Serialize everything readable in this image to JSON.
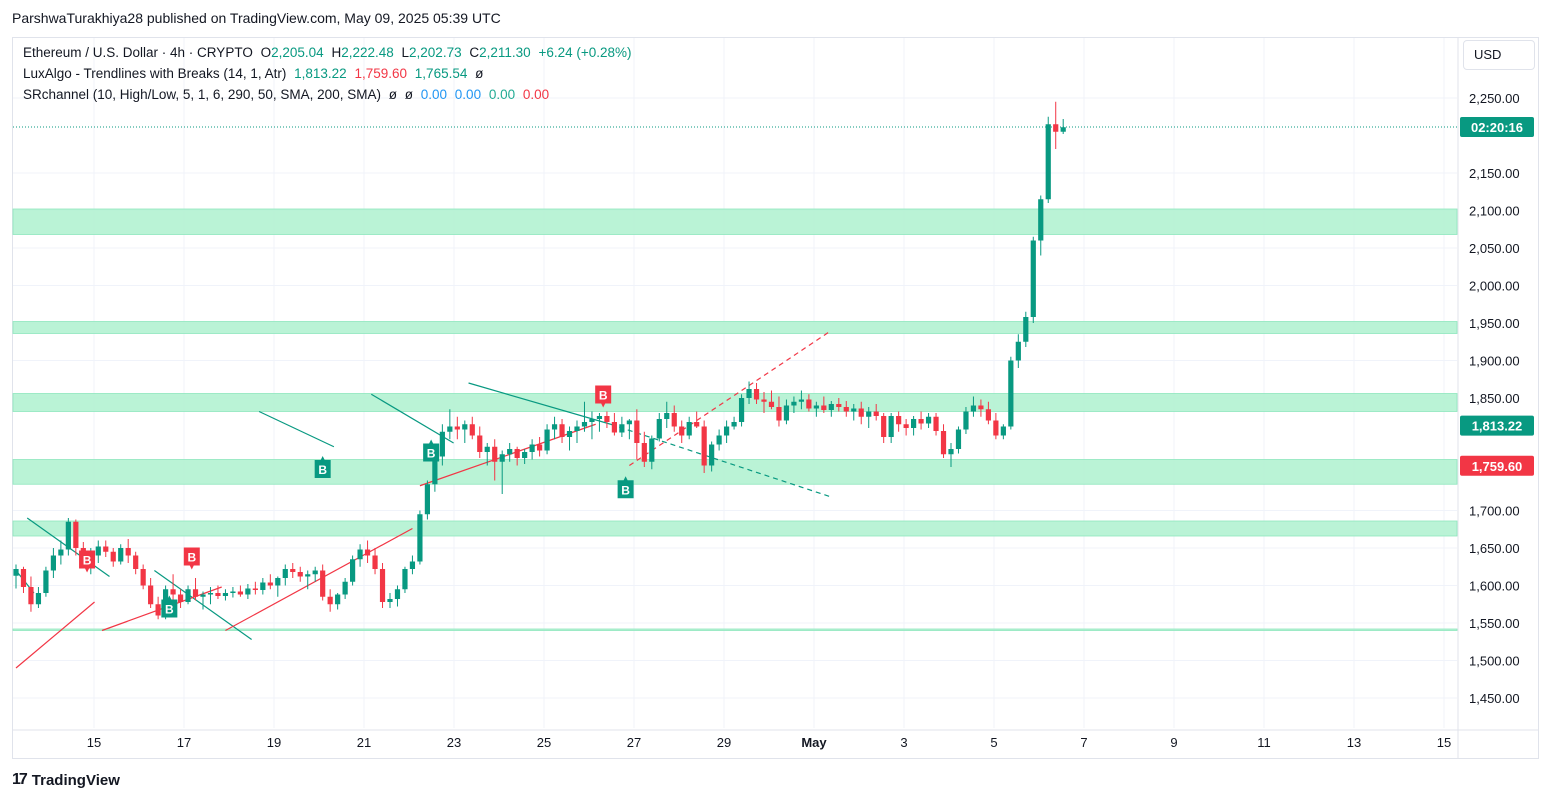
{
  "header": {
    "publisher": "ParshwaTurakhiya28 published on TradingView.com, May 09, 2025 05:39 UTC"
  },
  "legend": {
    "symbol": "Ethereum / U.S. Dollar · 4h · CRYPTO",
    "o_label": "O",
    "o": "2,205.04",
    "h_label": "H",
    "h": "2,222.48",
    "l_label": "L",
    "l": "2,202.73",
    "c_label": "C",
    "c": "2,211.30",
    "change": "+6.24 (+0.28%)",
    "indicator1": "LuxAlgo - Trendlines with Breaks (14, 1, Atr)",
    "ind1_v1": "1,813.22",
    "ind1_v2": "1,759.60",
    "ind1_v3": "1,765.54",
    "ind1_v4": "ø",
    "indicator2": "SRchannel (10, High/Low, 5, 1, 6, 290, 50, SMA, 200, SMA)",
    "ind2_v1": "ø",
    "ind2_v2": "ø",
    "ind2_v3": "0.00",
    "ind2_v4": "0.00",
    "ind2_v5": "0.00",
    "ind2_v6": "0.00"
  },
  "currency_button": "USD",
  "footer": {
    "logo": "17",
    "brand": "TradingView"
  },
  "colors": {
    "up": "#089981",
    "down": "#f23645",
    "zone": "#b2f2d1",
    "grid": "#f0f3fa"
  },
  "chart_data": {
    "type": "candlestick",
    "y_ticks": [
      "2,250.00",
      "2,150.00",
      "2,100.00",
      "2,050.00",
      "2,000.00",
      "1,950.00",
      "1,900.00",
      "1,850.00",
      "1,700.00",
      "1,650.00",
      "1,600.00",
      "1,550.00",
      "1,500.00",
      "1,450.00"
    ],
    "x_ticks": [
      "15",
      "17",
      "19",
      "21",
      "23",
      "25",
      "27",
      "29",
      "May",
      "3",
      "5",
      "7",
      "9",
      "11",
      "13",
      "15"
    ],
    "price_tags": [
      {
        "text": "02:20:16",
        "value": 2211.3,
        "color": "#089981"
      },
      {
        "text": "1,813.22",
        "value": 1813.22,
        "color": "#089981"
      },
      {
        "text": "1,759.60",
        "value": 1759.6,
        "color": "#f23645"
      }
    ],
    "support_resistance_zones": [
      {
        "low": 2068,
        "high": 2102
      },
      {
        "low": 1936,
        "high": 1952
      },
      {
        "low": 1832,
        "high": 1856
      },
      {
        "low": 1735,
        "high": 1768
      },
      {
        "low": 1666,
        "high": 1686
      },
      {
        "low": 1540,
        "high": 1542
      }
    ],
    "candles": [
      [
        1613,
        1628,
        1596,
        1622
      ],
      [
        1622,
        1625,
        1590,
        1598
      ],
      [
        1598,
        1612,
        1565,
        1575
      ],
      [
        1575,
        1598,
        1570,
        1590
      ],
      [
        1590,
        1625,
        1585,
        1620
      ],
      [
        1620,
        1650,
        1610,
        1640
      ],
      [
        1640,
        1660,
        1628,
        1648
      ],
      [
        1648,
        1690,
        1640,
        1685
      ],
      [
        1685,
        1688,
        1640,
        1650
      ],
      [
        1650,
        1658,
        1625,
        1635
      ],
      [
        1635,
        1650,
        1615,
        1640
      ],
      [
        1640,
        1660,
        1630,
        1652
      ],
      [
        1652,
        1660,
        1638,
        1645
      ],
      [
        1645,
        1650,
        1625,
        1632
      ],
      [
        1632,
        1655,
        1628,
        1650
      ],
      [
        1650,
        1662,
        1630,
        1640
      ],
      [
        1640,
        1645,
        1615,
        1622
      ],
      [
        1622,
        1628,
        1595,
        1600
      ],
      [
        1600,
        1610,
        1570,
        1575
      ],
      [
        1575,
        1585,
        1555,
        1560
      ],
      [
        1560,
        1600,
        1555,
        1595
      ],
      [
        1595,
        1615,
        1580,
        1588
      ],
      [
        1588,
        1595,
        1570,
        1578
      ],
      [
        1578,
        1600,
        1575,
        1595
      ],
      [
        1595,
        1610,
        1580,
        1585
      ],
      [
        1585,
        1592,
        1568,
        1588
      ],
      [
        1588,
        1598,
        1575,
        1590
      ],
      [
        1590,
        1600,
        1582,
        1586
      ],
      [
        1586,
        1595,
        1580,
        1590
      ],
      [
        1590,
        1598,
        1584,
        1592
      ],
      [
        1592,
        1600,
        1585,
        1588
      ],
      [
        1588,
        1602,
        1582,
        1596
      ],
      [
        1596,
        1605,
        1588,
        1594
      ],
      [
        1594,
        1610,
        1588,
        1604
      ],
      [
        1604,
        1615,
        1595,
        1600
      ],
      [
        1600,
        1612,
        1585,
        1610
      ],
      [
        1610,
        1628,
        1600,
        1622
      ],
      [
        1622,
        1630,
        1610,
        1618
      ],
      [
        1618,
        1625,
        1605,
        1612
      ],
      [
        1612,
        1620,
        1595,
        1615
      ],
      [
        1615,
        1625,
        1605,
        1620
      ],
      [
        1620,
        1628,
        1580,
        1585
      ],
      [
        1585,
        1595,
        1565,
        1575
      ],
      [
        1575,
        1590,
        1568,
        1588
      ],
      [
        1588,
        1610,
        1582,
        1605
      ],
      [
        1605,
        1640,
        1600,
        1635
      ],
      [
        1635,
        1655,
        1625,
        1648
      ],
      [
        1648,
        1660,
        1630,
        1640
      ],
      [
        1640,
        1650,
        1615,
        1622
      ],
      [
        1622,
        1630,
        1570,
        1578
      ],
      [
        1578,
        1590,
        1570,
        1582
      ],
      [
        1582,
        1600,
        1572,
        1595
      ],
      [
        1595,
        1625,
        1590,
        1622
      ],
      [
        1622,
        1640,
        1615,
        1632
      ],
      [
        1632,
        1700,
        1628,
        1695
      ],
      [
        1695,
        1740,
        1688,
        1735
      ],
      [
        1735,
        1780,
        1725,
        1772
      ],
      [
        1772,
        1815,
        1760,
        1805
      ],
      [
        1805,
        1835,
        1795,
        1812
      ],
      [
        1812,
        1825,
        1795,
        1808
      ],
      [
        1808,
        1820,
        1790,
        1815
      ],
      [
        1815,
        1825,
        1795,
        1800
      ],
      [
        1800,
        1812,
        1770,
        1778
      ],
      [
        1778,
        1790,
        1760,
        1785
      ],
      [
        1785,
        1795,
        1740,
        1765
      ],
      [
        1765,
        1780,
        1722,
        1775
      ],
      [
        1775,
        1790,
        1765,
        1782
      ],
      [
        1782,
        1785,
        1760,
        1770
      ],
      [
        1770,
        1782,
        1762,
        1778
      ],
      [
        1778,
        1795,
        1768,
        1788
      ],
      [
        1788,
        1798,
        1772,
        1780
      ],
      [
        1780,
        1815,
        1775,
        1808
      ],
      [
        1808,
        1825,
        1795,
        1815
      ],
      [
        1815,
        1822,
        1790,
        1798
      ],
      [
        1798,
        1812,
        1780,
        1806
      ],
      [
        1806,
        1820,
        1790,
        1812
      ],
      [
        1812,
        1845,
        1805,
        1818
      ],
      [
        1818,
        1832,
        1795,
        1822
      ],
      [
        1822,
        1830,
        1805,
        1826
      ],
      [
        1826,
        1832,
        1810,
        1818
      ],
      [
        1818,
        1830,
        1800,
        1804
      ],
      [
        1804,
        1825,
        1798,
        1815
      ],
      [
        1815,
        1822,
        1795,
        1820
      ],
      [
        1820,
        1835,
        1768,
        1790
      ],
      [
        1790,
        1805,
        1758,
        1765
      ],
      [
        1765,
        1800,
        1755,
        1796
      ],
      [
        1796,
        1830,
        1792,
        1822
      ],
      [
        1822,
        1845,
        1810,
        1830
      ],
      [
        1830,
        1840,
        1805,
        1812
      ],
      [
        1812,
        1820,
        1790,
        1800
      ],
      [
        1800,
        1825,
        1795,
        1818
      ],
      [
        1818,
        1832,
        1810,
        1812
      ],
      [
        1812,
        1820,
        1750,
        1760
      ],
      [
        1760,
        1792,
        1752,
        1788
      ],
      [
        1788,
        1808,
        1780,
        1800
      ],
      [
        1800,
        1820,
        1790,
        1812
      ],
      [
        1812,
        1825,
        1808,
        1818
      ],
      [
        1818,
        1855,
        1812,
        1850
      ],
      [
        1850,
        1872,
        1842,
        1862
      ],
      [
        1862,
        1870,
        1842,
        1848
      ],
      [
        1848,
        1858,
        1830,
        1845
      ],
      [
        1845,
        1860,
        1835,
        1838
      ],
      [
        1838,
        1852,
        1812,
        1820
      ],
      [
        1820,
        1848,
        1815,
        1840
      ],
      [
        1840,
        1852,
        1830,
        1845
      ],
      [
        1845,
        1860,
        1835,
        1848
      ],
      [
        1848,
        1855,
        1832,
        1836
      ],
      [
        1836,
        1845,
        1825,
        1840
      ],
      [
        1840,
        1852,
        1830,
        1834
      ],
      [
        1834,
        1846,
        1825,
        1842
      ],
      [
        1842,
        1850,
        1832,
        1838
      ],
      [
        1838,
        1846,
        1825,
        1832
      ],
      [
        1832,
        1842,
        1820,
        1836
      ],
      [
        1836,
        1845,
        1815,
        1825
      ],
      [
        1825,
        1838,
        1810,
        1832
      ],
      [
        1832,
        1842,
        1820,
        1826
      ],
      [
        1826,
        1830,
        1790,
        1798
      ],
      [
        1798,
        1830,
        1790,
        1826
      ],
      [
        1826,
        1832,
        1805,
        1815
      ],
      [
        1815,
        1822,
        1800,
        1810
      ],
      [
        1810,
        1826,
        1800,
        1822
      ],
      [
        1822,
        1832,
        1808,
        1816
      ],
      [
        1816,
        1830,
        1810,
        1825
      ],
      [
        1825,
        1830,
        1800,
        1806
      ],
      [
        1806,
        1815,
        1770,
        1775
      ],
      [
        1775,
        1790,
        1758,
        1782
      ],
      [
        1782,
        1812,
        1776,
        1808
      ],
      [
        1808,
        1838,
        1802,
        1832
      ],
      [
        1832,
        1852,
        1825,
        1840
      ],
      [
        1840,
        1848,
        1825,
        1835
      ],
      [
        1835,
        1845,
        1815,
        1820
      ],
      [
        1820,
        1830,
        1795,
        1800
      ],
      [
        1800,
        1815,
        1795,
        1812
      ],
      [
        1812,
        1905,
        1808,
        1900
      ],
      [
        1900,
        1935,
        1890,
        1925
      ],
      [
        1925,
        1965,
        1918,
        1958
      ],
      [
        1958,
        2065,
        1950,
        2060
      ],
      [
        2060,
        2120,
        2040,
        2115
      ],
      [
        2115,
        2225,
        2110,
        2215
      ],
      [
        2215,
        2245,
        2182,
        2205
      ],
      [
        2205,
        2222,
        2202,
        2211
      ]
    ],
    "trendlines": [
      {
        "color": "#089981",
        "from": [
          1.5,
          1690
        ],
        "to": [
          12.5,
          1612
        ],
        "style": "solid"
      },
      {
        "color": "#089981",
        "from": [
          0,
          1620
        ],
        "to": [
          2.4,
          1590
        ],
        "style": "solid"
      },
      {
        "color": "#089981",
        "from": [
          18.5,
          1620
        ],
        "to": [
          31.5,
          1528
        ],
        "style": "solid"
      },
      {
        "color": "#089981",
        "from": [
          32.5,
          1832
        ],
        "to": [
          42.5,
          1785
        ],
        "style": "solid"
      },
      {
        "color": "#089981",
        "from": [
          47.5,
          1855
        ],
        "to": [
          58.5,
          1790
        ],
        "style": "solid"
      },
      {
        "color": "#089981",
        "from": [
          60.5,
          1870
        ],
        "to": [
          79.5,
          1815
        ],
        "style": "solid"
      },
      {
        "color": "#089981",
        "from": [
          79.5,
          1815
        ],
        "to": [
          109,
          1718
        ],
        "style": "dashed"
      },
      {
        "color": "#f23645",
        "from": [
          0,
          1490
        ],
        "to": [
          10.5,
          1578
        ],
        "style": "solid"
      },
      {
        "color": "#f23645",
        "from": [
          11.5,
          1540
        ],
        "to": [
          27.5,
          1598
        ],
        "style": "solid"
      },
      {
        "color": "#f23645",
        "from": [
          28,
          1540
        ],
        "to": [
          53,
          1676
        ],
        "style": "solid"
      },
      {
        "color": "#f23645",
        "from": [
          54,
          1733
        ],
        "to": [
          77.5,
          1815
        ],
        "style": "solid"
      },
      {
        "color": "#f23645",
        "from": [
          82,
          1760
        ],
        "to": [
          109,
          1940
        ],
        "style": "dashed"
      }
    ],
    "break_markers": [
      {
        "type": "bullish",
        "label": "B",
        "index": 20.5,
        "price": 1592
      },
      {
        "type": "bullish",
        "label": "B",
        "index": 41,
        "price": 1778
      },
      {
        "type": "bullish",
        "label": "B",
        "index": 55.5,
        "price": 1800
      },
      {
        "type": "bullish",
        "label": "B",
        "index": 81.5,
        "price": 1751
      },
      {
        "type": "bearish",
        "label": "B",
        "index": 9.5,
        "price": 1612
      },
      {
        "type": "bearish",
        "label": "B",
        "index": 23.5,
        "price": 1616
      },
      {
        "type": "bearish",
        "label": "B",
        "index": 78.5,
        "price": 1832
      }
    ]
  }
}
